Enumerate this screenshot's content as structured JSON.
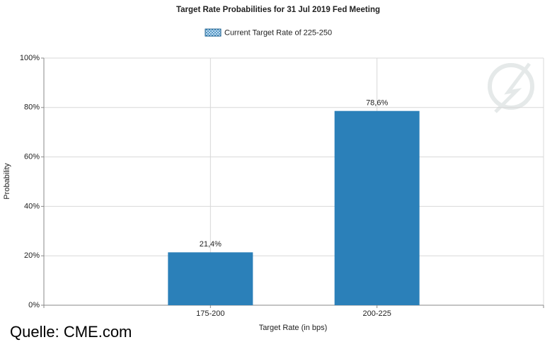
{
  "chart_data": {
    "type": "bar",
    "title": "Target Rate Probabilities for 31 Jul 2019 Fed Meeting",
    "x_label": "Target Rate (in bps)",
    "y_label": "Probability",
    "source": "Quelle: CME.com",
    "categories": [
      null,
      "175-200",
      "200-225",
      null
    ],
    "series": [
      {
        "name": "Current Target Rate of 225-250",
        "color": "#2b80b9",
        "values": [
          null,
          21.4,
          78.6,
          null
        ],
        "value_labels": [
          null,
          "21,4%",
          "78,6%",
          null
        ]
      }
    ],
    "ylim": [
      0,
      100
    ],
    "yticks": [
      {
        "value": 0,
        "label": "0%"
      },
      {
        "value": 20,
        "label": "20%"
      },
      {
        "value": 40,
        "label": "40%"
      },
      {
        "value": 60,
        "label": "60%"
      },
      {
        "value": 80,
        "label": "80%"
      },
      {
        "value": 100,
        "label": "100%"
      }
    ],
    "grid": true
  }
}
